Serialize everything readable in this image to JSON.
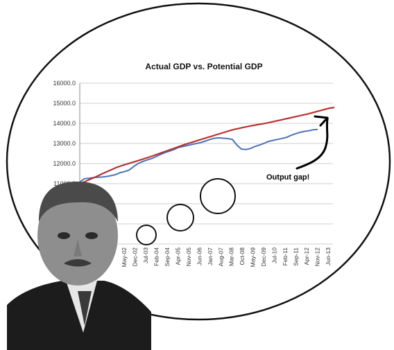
{
  "chart_data": {
    "type": "line",
    "title": "Actual GDP vs. Potential GDP",
    "xlabel": "",
    "ylabel": "",
    "x_tick_labels": [
      "May-02",
      "Dec-02",
      "Jul-03",
      "Feb-04",
      "Sep-04",
      "Apr-05",
      "Nov-05",
      "Jun-06",
      "Jan-07",
      "Aug-07",
      "Mar-08",
      "Oct-08",
      "May-09",
      "Dec-09",
      "Jul-10",
      "Feb-11",
      "Sep-11",
      "Apr-12",
      "Nov-12",
      "Jun-13"
    ],
    "y_ticks": [
      11000.0,
      12000.0,
      13000.0,
      14000.0,
      15000.0,
      16000.0
    ],
    "y_tick_labels": [
      "11000.0",
      "12000.0",
      "13000.0",
      "14000.0",
      "15000.0",
      "16000.0"
    ],
    "ylim": [
      8000,
      16000
    ],
    "grid": true,
    "series": [
      {
        "color": "#4a72b8",
        "values": [
          11080,
          11250,
          11270,
          11300,
          11320,
          11330,
          11360,
          11400,
          11450,
          11550,
          11600,
          11680,
          11850,
          12000,
          12100,
          12180,
          12250,
          12350,
          12450,
          12550,
          12620,
          12700,
          12800,
          12850,
          12900,
          12950,
          13000,
          13050,
          13120,
          13200,
          13260,
          13280,
          13260,
          13240,
          13200,
          12920,
          12720,
          12700,
          12750,
          12850,
          12920,
          13000,
          13100,
          13150,
          13200,
          13250,
          13300,
          13400,
          13480,
          13550,
          13600,
          13630,
          13680,
          13700
        ]
      },
      {
        "color": "#b83232",
        "values": [
          10990,
          11090,
          11190,
          11290,
          11390,
          11500,
          11600,
          11700,
          11800,
          11880,
          11950,
          12020,
          12090,
          12160,
          12230,
          12300,
          12380,
          12460,
          12540,
          12620,
          12700,
          12780,
          12860,
          12940,
          13010,
          13080,
          13150,
          13220,
          13290,
          13360,
          13430,
          13500,
          13570,
          13640,
          13700,
          13750,
          13800,
          13850,
          13890,
          13930,
          13970,
          14010,
          14060,
          14110,
          14160,
          14210,
          14260,
          14310,
          14360,
          14410,
          14460,
          14520,
          14580,
          14640,
          14700,
          14760,
          14790
        ]
      }
    ],
    "annotations": [
      {
        "text": "Output gap!"
      }
    ],
    "colors": {
      "bubble_stroke": "#111111",
      "grid": "#cfcfcf"
    }
  },
  "photo": {
    "icon": "portrait-photo"
  }
}
